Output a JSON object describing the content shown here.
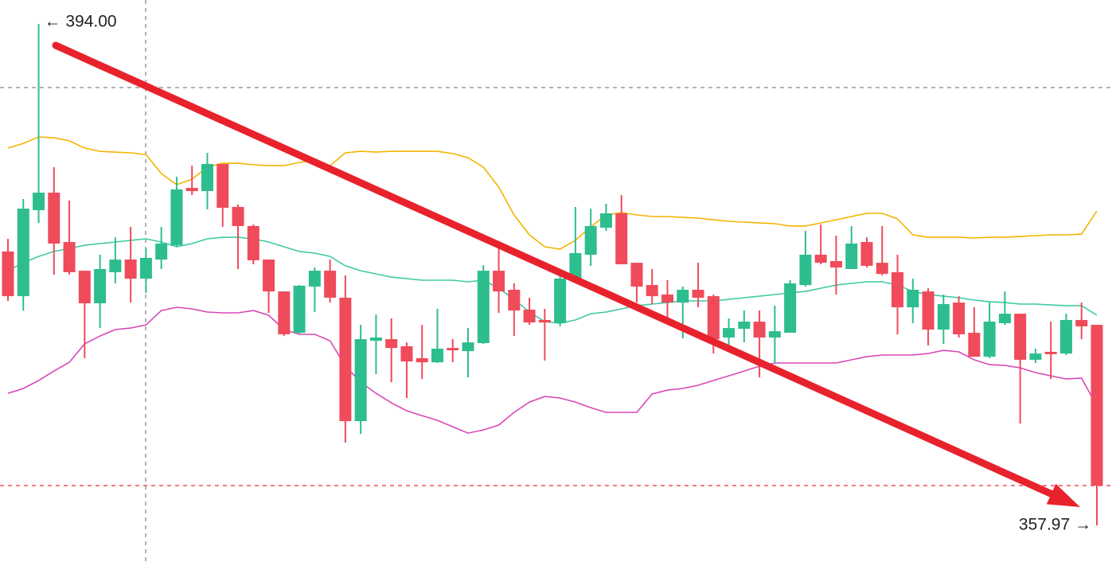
{
  "chart_data": {
    "type": "candlestick",
    "ylim": [
      355.34,
      395.72
    ],
    "up_color": "#2ebd8e",
    "down_color": "#ef4b5b",
    "open": [
      377.65,
      374.44,
      380.62,
      381.88,
      378.33,
      376.27,
      373.93,
      376.16,
      377.07,
      375.7,
      377.07,
      378.1,
      382.22,
      381.99,
      383.94,
      380.85,
      379.48,
      377.07,
      374.78,
      371.81,
      375.13,
      376.27,
      374.33,
      365.46,
      371.24,
      371.35,
      370.84,
      369.98,
      369.69,
      370.72,
      370.49,
      371.07,
      376.27,
      374.9,
      373.47,
      372.73,
      372.5,
      375.7,
      377.42,
      379.36,
      380.39,
      376.84,
      375.24,
      374.56,
      373.98,
      374.9,
      374.44,
      371.47,
      372.1,
      372.61,
      371.47,
      371.81,
      375.24,
      377.42,
      376.96,
      376.39,
      378.33,
      376.84,
      376.16,
      373.64,
      374.78,
      372.04,
      373.98,
      371.81,
      370.09,
      372.5,
      373.18,
      369.87,
      370.44,
      370.32,
      372.73,
      372.38
    ],
    "high": [
      378.56,
      381.42,
      394.0,
      383.71,
      381.31,
      376.27,
      377.42,
      378.67,
      379.42,
      377.87,
      379.42,
      383.02,
      383.82,
      384.74,
      383.94,
      381.02,
      379.59,
      377.07,
      374.78,
      375.24,
      376.5,
      377.07,
      375.93,
      372.38,
      373.13,
      372.84,
      371.12,
      372.38,
      373.53,
      371.35,
      372.15,
      376.67,
      377.87,
      375.36,
      374.33,
      373.53,
      376.39,
      380.85,
      380.73,
      381.08,
      381.71,
      376.84,
      376.39,
      375.59,
      375.13,
      376.84,
      374.56,
      372.84,
      373.41,
      373.41,
      373.76,
      375.59,
      379.13,
      379.59,
      378.79,
      379.48,
      378.67,
      379.48,
      377.42,
      375.7,
      375.01,
      374.56,
      374.44,
      373.64,
      373.98,
      374.78,
      373.18,
      370.67,
      372.61,
      373.18,
      373.98,
      372.38
    ],
    "low": [
      374.1,
      373.41,
      379.7,
      375.99,
      375.99,
      369.98,
      372.15,
      375.36,
      373.98,
      374.67,
      376.39,
      377.99,
      381.71,
      380.68,
      379.42,
      376.39,
      376.73,
      373.24,
      371.58,
      371.7,
      373.3,
      373.98,
      363.92,
      364.55,
      368.84,
      368.26,
      367.12,
      368.49,
      369.64,
      369.69,
      368.61,
      371.01,
      373.24,
      371.58,
      372.38,
      369.81,
      372.27,
      375.59,
      376.62,
      379.13,
      376.73,
      373.98,
      373.87,
      372.73,
      371.41,
      373.64,
      370.32,
      370.55,
      371.12,
      368.61,
      369.64,
      371.81,
      375.13,
      376.73,
      374.56,
      376.39,
      376.5,
      375.93,
      371.7,
      372.5,
      370.9,
      371.01,
      371.47,
      370.09,
      369.98,
      372.38,
      365.29,
      369.64,
      368.49,
      370.21,
      371.35,
      357.97
    ],
    "close": [
      374.44,
      380.73,
      381.88,
      378.22,
      376.16,
      373.93,
      376.39,
      377.07,
      375.7,
      377.19,
      378.22,
      382.11,
      381.99,
      383.94,
      380.79,
      379.48,
      377.02,
      374.78,
      371.7,
      375.19,
      376.27,
      374.33,
      365.46,
      371.35,
      371.47,
      370.72,
      369.75,
      369.69,
      370.67,
      370.55,
      371.12,
      376.27,
      374.78,
      373.41,
      372.55,
      372.55,
      375.7,
      377.53,
      379.48,
      380.39,
      376.73,
      375.13,
      374.44,
      373.98,
      374.9,
      374.33,
      371.35,
      372.15,
      372.61,
      371.47,
      371.92,
      375.36,
      377.42,
      376.84,
      376.5,
      378.22,
      376.62,
      376.04,
      373.64,
      374.9,
      372.04,
      373.87,
      371.7,
      370.09,
      372.61,
      373.18,
      369.87,
      370.32,
      370.27,
      372.73,
      372.27,
      360.83
    ],
    "bands": [
      {
        "color": "#f4b400",
        "values": [
          385.08,
          385.42,
          385.88,
          385.82,
          385.6,
          385.08,
          384.85,
          384.79,
          384.74,
          384.62,
          383.25,
          382.45,
          382.85,
          383.71,
          383.99,
          383.99,
          383.88,
          383.82,
          383.82,
          384.05,
          384.17,
          383.82,
          384.74,
          384.85,
          384.79,
          384.85,
          384.85,
          384.85,
          384.85,
          384.68,
          384.39,
          383.71,
          382.28,
          380.28,
          378.85,
          377.99,
          377.82,
          378.45,
          379.42,
          380.28,
          380.45,
          380.28,
          380.16,
          380.16,
          380.1,
          380.05,
          379.93,
          379.82,
          379.76,
          379.7,
          379.65,
          379.48,
          379.48,
          379.7,
          379.93,
          380.16,
          380.39,
          380.39,
          379.99,
          378.85,
          378.67,
          378.67,
          378.67,
          378.62,
          378.67,
          378.67,
          378.73,
          378.79,
          378.85,
          378.85,
          378.9,
          380.56
        ]
      },
      {
        "color": "#3ecaa6",
        "values": [
          376.27,
          376.84,
          377.3,
          377.65,
          377.87,
          378.1,
          378.22,
          378.33,
          378.45,
          378.56,
          378.33,
          377.99,
          378.22,
          378.56,
          378.67,
          378.67,
          378.56,
          378.33,
          377.99,
          377.65,
          377.53,
          377.3,
          376.62,
          376.27,
          376.04,
          375.81,
          375.7,
          375.59,
          375.59,
          375.59,
          375.47,
          375.59,
          375.01,
          374.21,
          373.3,
          372.61,
          372.5,
          372.73,
          373.18,
          373.3,
          373.53,
          373.76,
          373.87,
          373.98,
          374.1,
          374.1,
          374.1,
          374.21,
          374.33,
          374.44,
          374.56,
          374.67,
          374.78,
          375.01,
          375.24,
          375.36,
          375.47,
          375.47,
          375.24,
          374.78,
          374.56,
          374.44,
          374.33,
          374.16,
          374.04,
          373.98,
          373.87,
          373.87,
          373.81,
          373.76,
          373.76,
          373.07
        ]
      },
      {
        "color": "#d848b8",
        "values": [
          367.46,
          367.81,
          368.38,
          369.06,
          369.69,
          371.01,
          371.58,
          372.04,
          372.15,
          372.38,
          373.41,
          373.64,
          373.53,
          373.3,
          373.24,
          373.24,
          373.41,
          373.07,
          372.04,
          371.7,
          371.7,
          371.24,
          369.41,
          368.26,
          367.46,
          366.78,
          366.2,
          365.86,
          365.52,
          365.06,
          364.6,
          364.83,
          365.18,
          366.09,
          366.83,
          367.23,
          367.12,
          366.83,
          366.43,
          366.09,
          366.09,
          366.09,
          367.41,
          367.69,
          367.81,
          368.04,
          368.38,
          368.72,
          369.06,
          369.41,
          369.64,
          369.64,
          369.64,
          369.64,
          369.64,
          369.87,
          370.09,
          370.21,
          370.21,
          370.21,
          370.32,
          370.55,
          370.44,
          369.87,
          369.52,
          369.47,
          369.29,
          368.95,
          368.72,
          368.49,
          368.55,
          366.55
        ]
      }
    ],
    "high_label": "← 394.00",
    "low_label": "357.97 →"
  }
}
